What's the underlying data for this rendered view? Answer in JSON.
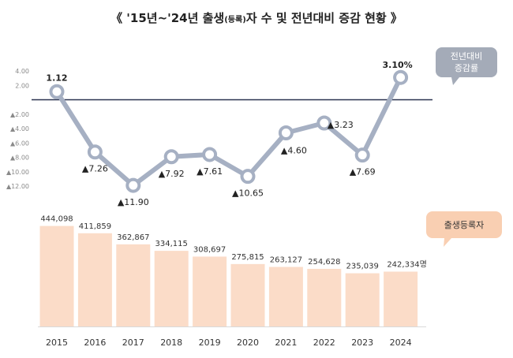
{
  "title": {
    "prefix": "《 '15년~'24년 출생",
    "small": "(등록)",
    "suffix": "자 수 및 전년대비 증감 현황 》"
  },
  "colors": {
    "line": "#a6b0c3",
    "baseline": "#2b3350",
    "bars": "#fbdcc8",
    "rate_callout": "#a4abb8",
    "births_callout": "#f9cfb2",
    "positive_label": "#e02020"
  },
  "chart_data": [
    {
      "type": "line",
      "legend_label": "전년대비\n증감률",
      "x": [
        "2015",
        "2016",
        "2017",
        "2018",
        "2019",
        "2020",
        "2021",
        "2022",
        "2023",
        "2024"
      ],
      "values": [
        1.12,
        -7.26,
        -11.9,
        -7.92,
        -7.61,
        -10.65,
        -4.6,
        -3.23,
        -7.69,
        3.1
      ],
      "value_labels": [
        "1.12",
        "▲7.26",
        "▲11.90",
        "▲7.92",
        "▲7.61",
        "▲10.65",
        "▲4.60",
        "▲3.23",
        "▲7.69",
        "3.10%"
      ],
      "y_ticks": [
        "4.00",
        "2.00",
        "",
        "▲2.00",
        "▲4.00",
        "▲6.00",
        "▲8.00",
        "▲10.00",
        "▲12.00"
      ],
      "y_tick_values": [
        4,
        2,
        0,
        -2,
        -4,
        -6,
        -8,
        -10,
        -12
      ],
      "ylim": [
        -12,
        4
      ],
      "baseline": 0
    },
    {
      "type": "bar",
      "legend_label": "출생등록자",
      "categories": [
        "2015",
        "2016",
        "2017",
        "2018",
        "2019",
        "2020",
        "2021",
        "2022",
        "2023",
        "2024"
      ],
      "values": [
        444098,
        411859,
        362867,
        334115,
        308697,
        275815,
        263127,
        254628,
        235039,
        242334
      ],
      "value_labels": [
        "444,098",
        "411,859",
        "362,867",
        "334,115",
        "308,697",
        "275,815",
        "263,127",
        "254,628",
        "235,039",
        "242,334명"
      ],
      "ylim": [
        0,
        460000
      ]
    }
  ]
}
